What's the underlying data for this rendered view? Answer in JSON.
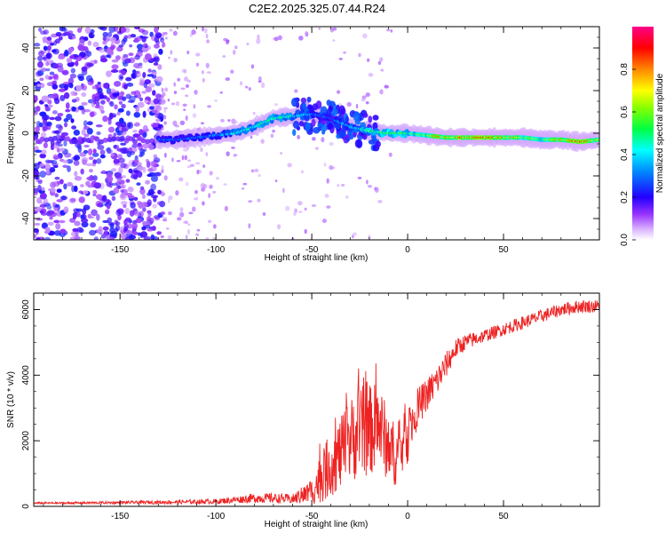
{
  "title": "C2E2.2025.325.07.44.R24",
  "chart_data": [
    {
      "type": "heatmap",
      "xlabel": "Height of straight line (km)",
      "ylabel": "Frequency (Hz)",
      "xlim": [
        -195,
        100
      ],
      "ylim": [
        -50,
        50
      ],
      "xticks": [
        -150,
        -100,
        -50,
        0,
        50
      ],
      "yticks": [
        -40,
        -20,
        0,
        20,
        40
      ],
      "colorbar": {
        "label": "Normalized spectral amplitude",
        "range": [
          0,
          1
        ],
        "ticks": [
          "0.0",
          "0.2",
          "0.4",
          "0.6",
          "0.8"
        ],
        "colors": [
          "#ffffff",
          "#cc99ff",
          "#8000ff",
          "#0000ff",
          "#00ffff",
          "#00ff00",
          "#ffff00",
          "#ff8000",
          "#ff0000",
          "#ff00ff"
        ]
      },
      "ridge": {
        "x": [
          -130,
          -120,
          -100,
          -90,
          -80,
          -70,
          -60,
          -50,
          -40,
          -30,
          -20,
          -10,
          0,
          10,
          20,
          40,
          60,
          70,
          80,
          90,
          100
        ],
        "freq": [
          -3,
          -3,
          -1,
          0,
          3,
          7,
          8,
          9,
          7,
          3,
          1,
          0,
          0,
          -1,
          -2,
          -2,
          -2,
          -3,
          -3,
          -4,
          -3
        ],
        "amplitude": [
          0.35,
          0.3,
          0.35,
          0.45,
          0.5,
          0.5,
          0.45,
          0.35,
          0.3,
          0.4,
          0.55,
          0.6,
          0.55,
          0.7,
          0.85,
          0.9,
          0.75,
          0.65,
          0.8,
          0.9,
          0.7
        ]
      },
      "noise_region_x": [
        -195,
        -128
      ],
      "noise_amplitude": 0.2
    },
    {
      "type": "line",
      "xlabel": "Height of straight line (km)",
      "ylabel": "SNR (10 * v/v)",
      "xlim": [
        -195,
        100
      ],
      "ylim": [
        0,
        6500
      ],
      "xticks": [
        -150,
        -100,
        -50,
        0,
        50
      ],
      "yticks": [
        0,
        2000,
        4000,
        6000
      ],
      "color": "#ee2222",
      "series": {
        "name": "SNR",
        "x": [
          -195,
          -180,
          -160,
          -140,
          -120,
          -100,
          -90,
          -80,
          -70,
          -60,
          -50,
          -45,
          -40,
          -35,
          -30,
          -25,
          -20,
          -15,
          -10,
          -5,
          0,
          5,
          10,
          15,
          20,
          25,
          30,
          40,
          50,
          60,
          70,
          80,
          90,
          100
        ],
        "y": [
          100,
          100,
          110,
          120,
          130,
          150,
          200,
          250,
          250,
          220,
          450,
          900,
          1300,
          1600,
          2000,
          2300,
          2300,
          2500,
          1800,
          1500,
          2200,
          3000,
          3400,
          3800,
          4300,
          4800,
          5000,
          5200,
          5400,
          5600,
          5800,
          6000,
          6100,
          6100
        ],
        "amp": [
          30,
          30,
          40,
          50,
          60,
          80,
          100,
          150,
          150,
          150,
          400,
          800,
          1000,
          1100,
          1300,
          1400,
          1400,
          1300,
          1100,
          900,
          900,
          600,
          500,
          500,
          400,
          300,
          250,
          200,
          200,
          200,
          200,
          200,
          200,
          200
        ]
      }
    }
  ]
}
